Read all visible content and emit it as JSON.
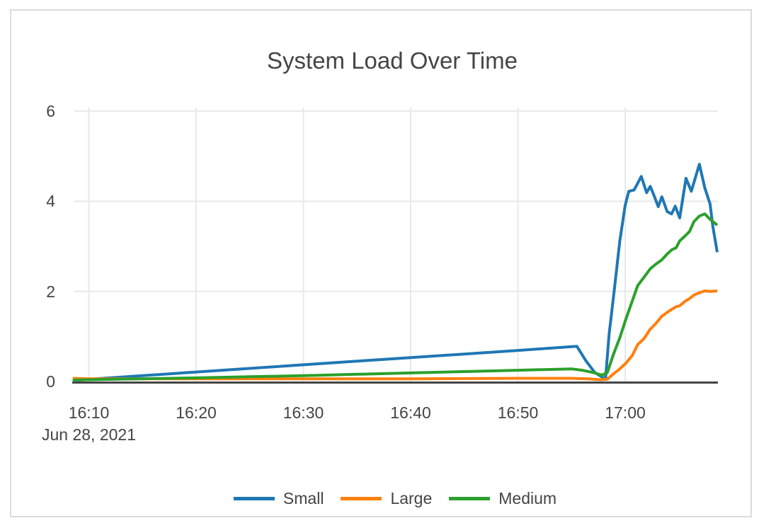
{
  "chart": {
    "title": "System Load Over Time"
  },
  "chart_data": {
    "type": "line",
    "title": "System Load Over Time",
    "x_axis": {
      "date_label": "Jun 28, 2021",
      "tick_labels": [
        "16:10",
        "16:20",
        "16:30",
        "16:40",
        "16:50",
        "17:00"
      ],
      "range": [
        "16:08:30",
        "17:08:40"
      ]
    },
    "y_axis": {
      "tick_labels": [
        "0",
        "2",
        "4",
        "6"
      ],
      "ticks": [
        0,
        2,
        4,
        6
      ],
      "range": [
        0,
        6
      ]
    },
    "grid": true,
    "legend_position": "bottom-center",
    "colors": {
      "grid": "#e8e8e8",
      "zeroline": "#444444",
      "text": "#444444",
      "card_border": "#dcdcdc"
    },
    "series": [
      {
        "name": "Small",
        "color": "#1f77b4",
        "points": [
          [
            "16:08:30",
            0.02
          ],
          [
            "16:10:00",
            0.05
          ],
          [
            "16:15:00",
            0.13
          ],
          [
            "16:20:00",
            0.21
          ],
          [
            "16:25:00",
            0.29
          ],
          [
            "16:30:00",
            0.37
          ],
          [
            "16:35:00",
            0.45
          ],
          [
            "16:40:00",
            0.53
          ],
          [
            "16:45:00",
            0.61
          ],
          [
            "16:50:00",
            0.69
          ],
          [
            "16:55:30",
            0.78
          ],
          [
            "16:56:20",
            0.46
          ],
          [
            "16:57:10",
            0.2
          ],
          [
            "16:58:10",
            0.05
          ],
          [
            "16:58:30",
            1.05
          ],
          [
            "16:59:00",
            2.07
          ],
          [
            "16:59:30",
            3.12
          ],
          [
            "17:00:00",
            3.91
          ],
          [
            "17:00:20",
            4.22
          ],
          [
            "17:00:50",
            4.25
          ],
          [
            "17:01:30",
            4.55
          ],
          [
            "17:02:00",
            4.19
          ],
          [
            "17:02:20",
            4.33
          ],
          [
            "17:02:40",
            4.14
          ],
          [
            "17:03:05",
            3.88
          ],
          [
            "17:03:25",
            4.1
          ],
          [
            "17:03:55",
            3.77
          ],
          [
            "17:04:20",
            3.72
          ],
          [
            "17:04:40",
            3.89
          ],
          [
            "17:05:05",
            3.63
          ],
          [
            "17:05:40",
            4.51
          ],
          [
            "17:06:10",
            4.22
          ],
          [
            "17:06:55",
            4.82
          ],
          [
            "17:07:25",
            4.3
          ],
          [
            "17:07:55",
            3.94
          ],
          [
            "17:08:10",
            3.45
          ],
          [
            "17:08:35",
            2.87
          ]
        ]
      },
      {
        "name": "Large",
        "color": "#ff7f0e",
        "points": [
          [
            "16:08:30",
            0.07
          ],
          [
            "16:10:00",
            0.06
          ],
          [
            "16:20:00",
            0.06
          ],
          [
            "16:30:00",
            0.06
          ],
          [
            "16:40:00",
            0.06
          ],
          [
            "16:50:00",
            0.07
          ],
          [
            "16:55:00",
            0.07
          ],
          [
            "16:56:30",
            0.06
          ],
          [
            "16:57:40",
            0.04
          ],
          [
            "16:58:20",
            0.05
          ],
          [
            "16:58:55",
            0.17
          ],
          [
            "16:59:30",
            0.28
          ],
          [
            "17:00:05",
            0.41
          ],
          [
            "17:00:40",
            0.58
          ],
          [
            "17:01:10",
            0.82
          ],
          [
            "17:01:45",
            0.95
          ],
          [
            "17:02:20",
            1.16
          ],
          [
            "17:02:50",
            1.28
          ],
          [
            "17:03:25",
            1.45
          ],
          [
            "17:03:50",
            1.52
          ],
          [
            "17:04:20",
            1.6
          ],
          [
            "17:04:45",
            1.66
          ],
          [
            "17:05:05",
            1.68
          ],
          [
            "17:05:35",
            1.78
          ],
          [
            "17:06:00",
            1.84
          ],
          [
            "17:06:25",
            1.92
          ],
          [
            "17:06:55",
            1.97
          ],
          [
            "17:07:25",
            2.01
          ],
          [
            "17:07:55",
            2.0
          ],
          [
            "17:08:35",
            2.01
          ]
        ]
      },
      {
        "name": "Medium",
        "color": "#2ca02c",
        "points": [
          [
            "16:08:30",
            0.03
          ],
          [
            "16:10:00",
            0.04
          ],
          [
            "16:20:00",
            0.08
          ],
          [
            "16:30:00",
            0.13
          ],
          [
            "16:40:00",
            0.19
          ],
          [
            "16:45:00",
            0.22
          ],
          [
            "16:50:00",
            0.25
          ],
          [
            "16:55:00",
            0.28
          ],
          [
            "16:56:00",
            0.25
          ],
          [
            "16:57:00",
            0.2
          ],
          [
            "16:57:50",
            0.14
          ],
          [
            "16:58:20",
            0.2
          ],
          [
            "16:58:55",
            0.61
          ],
          [
            "16:59:30",
            0.97
          ],
          [
            "17:00:05",
            1.4
          ],
          [
            "17:00:40",
            1.79
          ],
          [
            "17:01:10",
            2.13
          ],
          [
            "17:01:45",
            2.31
          ],
          [
            "17:02:20",
            2.5
          ],
          [
            "17:02:50",
            2.6
          ],
          [
            "17:03:25",
            2.7
          ],
          [
            "17:03:50",
            2.81
          ],
          [
            "17:04:20",
            2.92
          ],
          [
            "17:04:45",
            2.97
          ],
          [
            "17:05:05",
            3.12
          ],
          [
            "17:05:35",
            3.23
          ],
          [
            "17:06:00",
            3.33
          ],
          [
            "17:06:25",
            3.55
          ],
          [
            "17:06:55",
            3.67
          ],
          [
            "17:07:25",
            3.72
          ],
          [
            "17:07:55",
            3.6
          ],
          [
            "17:08:35",
            3.47
          ]
        ]
      }
    ]
  }
}
